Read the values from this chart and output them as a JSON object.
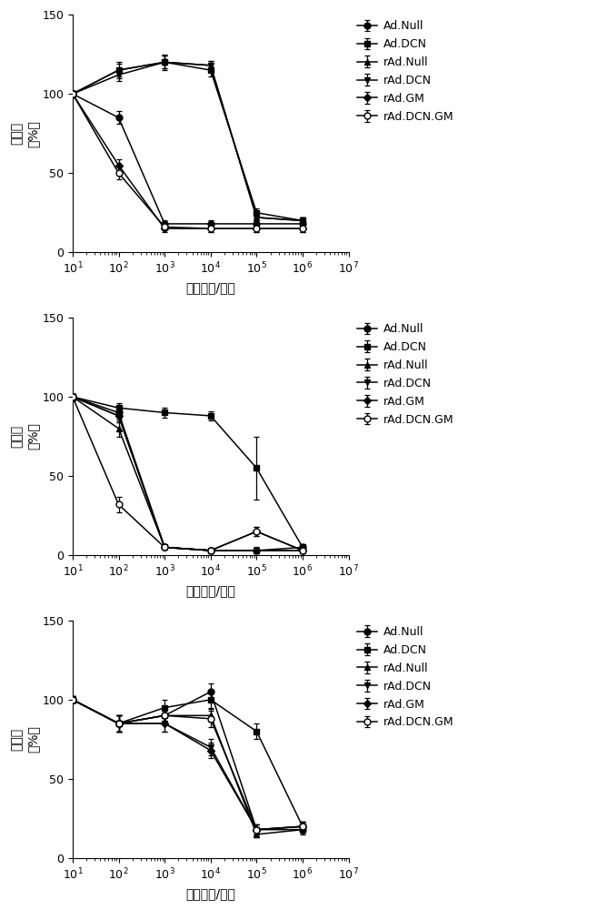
{
  "x_vals": [
    10,
    100,
    1000,
    10000,
    100000,
    1000000
  ],
  "panel1": {
    "Ad.Null": {
      "y": [
        100,
        85,
        18,
        18,
        18,
        18
      ],
      "yerr": [
        2,
        4,
        2,
        2,
        2,
        2
      ]
    },
    "Ad.DCN": {
      "y": [
        100,
        115,
        120,
        115,
        25,
        20
      ],
      "yerr": [
        2,
        5,
        5,
        4,
        3,
        2
      ]
    },
    "rAd.Null": {
      "y": [
        100,
        115,
        120,
        118,
        22,
        20
      ],
      "yerr": [
        2,
        4,
        4,
        3,
        2,
        2
      ]
    },
    "rAd.DCN": {
      "y": [
        100,
        112,
        120,
        118,
        22,
        20
      ],
      "yerr": [
        2,
        4,
        4,
        3,
        2,
        2
      ]
    },
    "rAd.GM": {
      "y": [
        100,
        55,
        15,
        15,
        15,
        15
      ],
      "yerr": [
        2,
        4,
        2,
        2,
        2,
        2
      ]
    },
    "rAd.DCN.GM": {
      "y": [
        100,
        50,
        16,
        15,
        15,
        15
      ],
      "yerr": [
        2,
        4,
        2,
        2,
        2,
        2
      ]
    }
  },
  "panel2": {
    "Ad.Null": {
      "y": [
        100,
        90,
        5,
        3,
        3,
        5
      ],
      "yerr": [
        2,
        4,
        1,
        1,
        2,
        1
      ]
    },
    "Ad.DCN": {
      "y": [
        100,
        93,
        90,
        88,
        55,
        5
      ],
      "yerr": [
        2,
        3,
        3,
        3,
        20,
        1
      ]
    },
    "rAd.Null": {
      "y": [
        100,
        80,
        5,
        3,
        3,
        3
      ],
      "yerr": [
        2,
        5,
        1,
        1,
        1,
        1
      ]
    },
    "rAd.DCN": {
      "y": [
        100,
        88,
        5,
        3,
        3,
        3
      ],
      "yerr": [
        2,
        4,
        1,
        1,
        1,
        1
      ]
    },
    "rAd.GM": {
      "y": [
        100,
        88,
        5,
        3,
        15,
        3
      ],
      "yerr": [
        2,
        4,
        1,
        1,
        3,
        1
      ]
    },
    "rAd.DCN.GM": {
      "y": [
        100,
        32,
        5,
        3,
        15,
        3
      ],
      "yerr": [
        2,
        5,
        1,
        1,
        3,
        1
      ]
    }
  },
  "panel3": {
    "Ad.Null": {
      "y": [
        100,
        85,
        90,
        105,
        18,
        18
      ],
      "yerr": [
        2,
        5,
        5,
        5,
        3,
        3
      ]
    },
    "Ad.DCN": {
      "y": [
        100,
        85,
        95,
        100,
        80,
        20
      ],
      "yerr": [
        2,
        5,
        5,
        5,
        5,
        3
      ]
    },
    "rAd.Null": {
      "y": [
        100,
        85,
        90,
        90,
        15,
        18
      ],
      "yerr": [
        2,
        5,
        5,
        4,
        2,
        2
      ]
    },
    "rAd.DCN": {
      "y": [
        100,
        85,
        85,
        70,
        18,
        20
      ],
      "yerr": [
        2,
        5,
        5,
        5,
        3,
        3
      ]
    },
    "rAd.GM": {
      "y": [
        100,
        85,
        85,
        68,
        18,
        20
      ],
      "yerr": [
        2,
        5,
        5,
        5,
        3,
        3
      ]
    },
    "rAd.DCN.GM": {
      "y": [
        100,
        85,
        90,
        88,
        18,
        20
      ],
      "yerr": [
        2,
        5,
        5,
        5,
        3,
        3
      ]
    }
  },
  "series_styles": {
    "Ad.Null": {
      "marker": "o",
      "markersize": 5,
      "mfc": "#000000"
    },
    "Ad.DCN": {
      "marker": "s",
      "markersize": 5,
      "mfc": "#000000"
    },
    "rAd.Null": {
      "marker": "^",
      "markersize": 5,
      "mfc": "#000000"
    },
    "rAd.DCN": {
      "marker": "v",
      "markersize": 5,
      "mfc": "#000000"
    },
    "rAd.GM": {
      "marker": "D",
      "markersize": 4,
      "mfc": "#000000"
    },
    "rAd.DCN.GM": {
      "marker": "o",
      "markersize": 5,
      "mfc": "#ffffff"
    }
  },
  "ylabel_top": "存活率",
  "ylabel_bot": "（%）",
  "xlabel": "病毒颛粒/细胞",
  "ylim": [
    0,
    150
  ],
  "yticks": [
    0,
    50,
    100,
    150
  ],
  "xlim_log": [
    1,
    7
  ],
  "xtick_vals": [
    10,
    100,
    1000,
    10000,
    100000,
    1000000,
    10000000
  ],
  "legend_labels": [
    "Ad.Null",
    "Ad.DCN",
    "rAd.Null",
    "rAd.DCN",
    "rAd.GM",
    "rAd.DCN.GM"
  ],
  "fontsize_label": 10,
  "fontsize_tick": 9,
  "fontsize_legend": 9
}
